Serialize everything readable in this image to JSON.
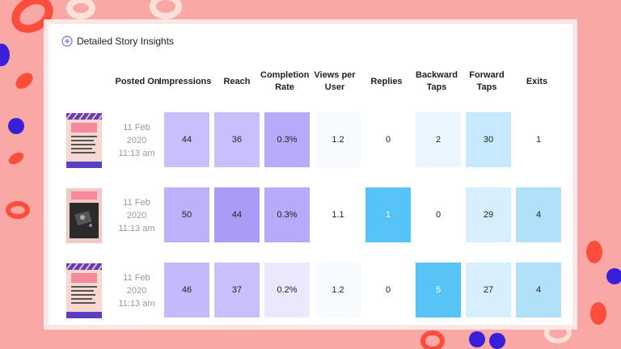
{
  "panel": {
    "title": "Detailed Story Insights",
    "icon": "add-circle-icon"
  },
  "columns": [
    {
      "key": "posted",
      "label": "Posted On"
    },
    {
      "key": "impressions",
      "label": "Impressions"
    },
    {
      "key": "reach",
      "label": "Reach"
    },
    {
      "key": "completion",
      "label": "Completion Rate"
    },
    {
      "key": "views",
      "label": "Views per User"
    },
    {
      "key": "replies",
      "label": "Replies"
    },
    {
      "key": "backward",
      "label": "Backward Taps"
    },
    {
      "key": "forward",
      "label": "Forward Taps"
    },
    {
      "key": "exits",
      "label": "Exits"
    }
  ],
  "rows": [
    {
      "thumbnail": "blog-story-thumbnail",
      "date": "11 Feb",
      "year": "2020",
      "time": "11:13 am",
      "impressions": "44",
      "reach": "36",
      "completion": "0.3%",
      "views": "1.2",
      "replies": "0",
      "backward": "2",
      "forward": "30",
      "exits": "1"
    },
    {
      "thumbnail": "blog-story-thumbnail",
      "date": "11 Feb",
      "year": "2020",
      "time": "11:13 am",
      "impressions": "50",
      "reach": "44",
      "completion": "0.3%",
      "views": "1.1",
      "replies": "1",
      "backward": "0",
      "forward": "29",
      "exits": "4"
    },
    {
      "thumbnail": "blog-story-thumbnail",
      "date": "11 Feb",
      "year": "2020",
      "time": "11:13 am",
      "impressions": "46",
      "reach": "37",
      "completion": "0.2%",
      "views": "1.2",
      "replies": "0",
      "backward": "5",
      "forward": "27",
      "exits": "4"
    }
  ],
  "colors": {
    "background": "#f9a8a6",
    "purple_strong": "#a99cf7",
    "purple_mid": "#bcb2fb",
    "purple_light": "#c8c0fc",
    "purple_faint": "#ebe8fe",
    "blue_strong": "#56c4f6",
    "blue_mid": "#b1e0fb",
    "blue_light": "#d5effd",
    "blue_faint": "#ebf6fe",
    "near_white": "#f7fafe"
  }
}
